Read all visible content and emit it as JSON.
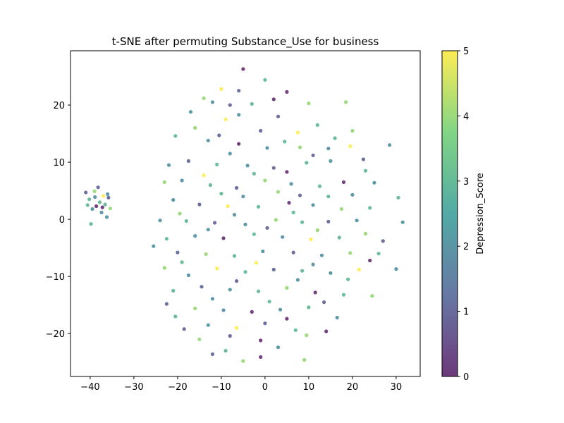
{
  "chart_data": {
    "type": "scatter",
    "title": "t-SNE after permuting Substance_Use for business",
    "xlabel": "",
    "ylabel": "",
    "xlim": [
      -44.5,
      35.5
    ],
    "ylim": [
      -27.5,
      29.5
    ],
    "xticks": [
      -40,
      -30,
      -20,
      -10,
      0,
      10,
      20,
      30
    ],
    "xtick_labels": [
      "−40",
      "−30",
      "−20",
      "−10",
      "0",
      "10",
      "20",
      "30"
    ],
    "yticks": [
      -20,
      -10,
      0,
      10,
      20
    ],
    "ytick_labels": [
      "−20",
      "−10",
      "0",
      "10",
      "20"
    ],
    "grid": false,
    "colormap": "viridis",
    "marker_alpha": 0.75,
    "colorbar": {
      "label": "Depression_Score",
      "range": [
        0,
        5
      ],
      "ticks": [
        0,
        1,
        2,
        3,
        4,
        5
      ],
      "tick_labels": [
        "0",
        "1",
        "2",
        "3",
        "4",
        "5"
      ]
    },
    "points": [
      [
        -41.0,
        4.7,
        1
      ],
      [
        -40.2,
        3.5,
        3
      ],
      [
        -39.5,
        1.8,
        2
      ],
      [
        -39.0,
        4.9,
        4
      ],
      [
        -38.6,
        2.3,
        0
      ],
      [
        -38.2,
        5.6,
        1
      ],
      [
        -37.8,
        3.0,
        3
      ],
      [
        -37.4,
        1.2,
        2
      ],
      [
        -37.0,
        4.1,
        5
      ],
      [
        -36.6,
        2.6,
        3
      ],
      [
        -36.2,
        0.4,
        2
      ],
      [
        -35.8,
        3.8,
        1
      ],
      [
        -35.4,
        1.9,
        4
      ],
      [
        -39.8,
        -0.8,
        3
      ],
      [
        -38.9,
        3.9,
        2
      ],
      [
        -37.2,
        2.1,
        0
      ],
      [
        -40.6,
        2.5,
        3
      ],
      [
        -36.0,
        4.4,
        2
      ],
      [
        -5.0,
        26.3,
        0
      ],
      [
        0.0,
        24.4,
        3
      ],
      [
        -10.0,
        22.8,
        5
      ],
      [
        -6.0,
        22.5,
        1
      ],
      [
        5.0,
        22.3,
        0
      ],
      [
        -14.0,
        21.2,
        4
      ],
      [
        -12.0,
        20.5,
        2
      ],
      [
        -8.0,
        20.0,
        1
      ],
      [
        -3.0,
        20.2,
        3
      ],
      [
        2.0,
        21.0,
        0
      ],
      [
        10.0,
        20.3,
        4
      ],
      [
        18.5,
        20.5,
        4
      ],
      [
        -17.0,
        18.8,
        2
      ],
      [
        -9.0,
        17.5,
        5
      ],
      [
        3.0,
        18.0,
        1
      ],
      [
        12.0,
        16.5,
        3
      ],
      [
        -20.5,
        14.6,
        3
      ],
      [
        -13.0,
        13.8,
        2
      ],
      [
        -6.0,
        13.2,
        0
      ],
      [
        0.5,
        12.5,
        2
      ],
      [
        8.0,
        12.6,
        4
      ],
      [
        16.0,
        14.2,
        3
      ],
      [
        20.0,
        15.5,
        4
      ],
      [
        -22.0,
        9.5,
        2
      ],
      [
        -17.5,
        10.2,
        1
      ],
      [
        -11.0,
        9.6,
        3
      ],
      [
        -4.0,
        9.4,
        2
      ],
      [
        2.0,
        9.0,
        1
      ],
      [
        9.5,
        9.9,
        3
      ],
      [
        15.0,
        10.2,
        2
      ],
      [
        22.5,
        10.5,
        1
      ],
      [
        28.5,
        13.0,
        2
      ],
      [
        -23.0,
        6.5,
        4
      ],
      [
        -19.0,
        6.8,
        2
      ],
      [
        -12.5,
        6.0,
        3
      ],
      [
        -6.5,
        5.5,
        1
      ],
      [
        0.0,
        6.8,
        4
      ],
      [
        6.0,
        6.2,
        2
      ],
      [
        12.5,
        5.8,
        3
      ],
      [
        18.0,
        6.5,
        0
      ],
      [
        25.0,
        6.4,
        2
      ],
      [
        30.5,
        3.8,
        3
      ],
      [
        -21.0,
        3.4,
        2
      ],
      [
        -15.0,
        2.6,
        1
      ],
      [
        -8.5,
        2.3,
        5
      ],
      [
        -1.5,
        2.2,
        3
      ],
      [
        5.5,
        2.9,
        0
      ],
      [
        11.0,
        2.5,
        2
      ],
      [
        17.5,
        1.8,
        4
      ],
      [
        24.0,
        2.0,
        3
      ],
      [
        -24.0,
        -0.2,
        2
      ],
      [
        -18.0,
        -0.3,
        3
      ],
      [
        -11.5,
        -0.6,
        1
      ],
      [
        -4.5,
        -0.9,
        2
      ],
      [
        2.5,
        -0.1,
        4
      ],
      [
        8.5,
        -0.5,
        3
      ],
      [
        14.5,
        -0.4,
        1
      ],
      [
        21.0,
        -0.2,
        2
      ],
      [
        31.5,
        -0.5,
        2
      ],
      [
        -22.5,
        -3.4,
        3
      ],
      [
        -16.0,
        -2.9,
        2
      ],
      [
        -9.5,
        -3.3,
        0
      ],
      [
        -2.5,
        -2.6,
        3
      ],
      [
        4.0,
        -3.1,
        2
      ],
      [
        10.5,
        -3.5,
        5
      ],
      [
        17.0,
        -3.2,
        3
      ],
      [
        23.0,
        -2.5,
        4
      ],
      [
        27.0,
        -3.8,
        1
      ],
      [
        -25.5,
        -4.7,
        2
      ],
      [
        -20.0,
        -5.8,
        1
      ],
      [
        -13.5,
        -6.1,
        4
      ],
      [
        -7.0,
        -6.4,
        3
      ],
      [
        -0.5,
        -5.6,
        2
      ],
      [
        6.5,
        -5.8,
        1
      ],
      [
        13.0,
        -6.3,
        2
      ],
      [
        19.5,
        -5.9,
        4
      ],
      [
        26.0,
        -6.0,
        3
      ],
      [
        -23.0,
        -8.5,
        4
      ],
      [
        -17.5,
        -9.8,
        2
      ],
      [
        -11.0,
        -8.6,
        5
      ],
      [
        -4.5,
        -9.2,
        3
      ],
      [
        2.0,
        -8.8,
        1
      ],
      [
        8.5,
        -9.0,
        3
      ],
      [
        15.0,
        -9.4,
        2
      ],
      [
        21.5,
        -8.8,
        5
      ],
      [
        30.0,
        -8.7,
        2
      ],
      [
        -21.0,
        -12.5,
        3
      ],
      [
        -14.5,
        -11.8,
        1
      ],
      [
        -8.0,
        -12.3,
        2
      ],
      [
        -1.5,
        -12.6,
        3
      ],
      [
        5.0,
        -12.0,
        4
      ],
      [
        11.5,
        -12.8,
        0
      ],
      [
        18.0,
        -13.2,
        3
      ],
      [
        24.5,
        -13.4,
        4
      ],
      [
        -22.5,
        -14.8,
        1
      ],
      [
        -16.0,
        -15.6,
        4
      ],
      [
        -9.5,
        -15.9,
        2
      ],
      [
        -3.0,
        -16.2,
        0
      ],
      [
        3.5,
        -15.8,
        2
      ],
      [
        10.0,
        -15.4,
        3
      ],
      [
        16.5,
        -17.2,
        2
      ],
      [
        -20.5,
        -17.0,
        3
      ],
      [
        -13.0,
        -18.5,
        2
      ],
      [
        -6.5,
        -19.0,
        5
      ],
      [
        0.0,
        -18.2,
        1
      ],
      [
        7.0,
        -19.4,
        3
      ],
      [
        14.0,
        -19.6,
        0
      ],
      [
        -15.0,
        -21.0,
        4
      ],
      [
        -8.0,
        -20.4,
        1
      ],
      [
        -1.0,
        -21.2,
        0
      ],
      [
        9.5,
        -20.3,
        4
      ],
      [
        3.0,
        -22.4,
        2
      ],
      [
        -12.0,
        -23.6,
        1
      ],
      [
        -5.0,
        -24.8,
        4
      ],
      [
        -1.0,
        -24.1,
        0
      ],
      [
        9.0,
        -24.6,
        4
      ],
      [
        -9.0,
        -23.0,
        3
      ],
      [
        -6.0,
        18.3,
        2
      ],
      [
        -1.0,
        15.5,
        1
      ],
      [
        7.5,
        15.2,
        5
      ],
      [
        14.5,
        12.4,
        2
      ],
      [
        -16.0,
        16.0,
        4
      ],
      [
        -10.5,
        14.7,
        1
      ],
      [
        4.5,
        13.6,
        3
      ],
      [
        19.5,
        12.8,
        5
      ],
      [
        -8.0,
        11.5,
        2
      ],
      [
        11.0,
        11.2,
        1
      ],
      [
        -2.5,
        8.0,
        3
      ],
      [
        5.0,
        8.3,
        0
      ],
      [
        23.0,
        8.5,
        3
      ],
      [
        -14.0,
        7.7,
        5
      ],
      [
        -5.0,
        4.0,
        2
      ],
      [
        8.0,
        4.2,
        1
      ],
      [
        14.5,
        4.0,
        3
      ],
      [
        -10.0,
        4.5,
        3
      ],
      [
        3.0,
        4.8,
        4
      ],
      [
        20.0,
        4.3,
        2
      ],
      [
        -19.5,
        1.0,
        4
      ],
      [
        -7.0,
        0.8,
        2
      ],
      [
        6.5,
        1.2,
        3
      ],
      [
        -13.0,
        -1.8,
        2
      ],
      [
        0.5,
        -1.5,
        1
      ],
      [
        12.0,
        -1.9,
        4
      ],
      [
        -19.0,
        -7.5,
        3
      ],
      [
        -2.0,
        -7.6,
        5
      ],
      [
        11.0,
        -7.9,
        2
      ],
      [
        24.0,
        -7.2,
        0
      ],
      [
        -6.5,
        -10.8,
        1
      ],
      [
        7.5,
        -10.6,
        2
      ],
      [
        19.0,
        -10.5,
        3
      ],
      [
        -12.0,
        -13.9,
        2
      ],
      [
        1.0,
        -14.4,
        3
      ],
      [
        13.5,
        -14.5,
        1
      ],
      [
        -18.5,
        -19.2,
        1
      ],
      [
        5.0,
        -17.4,
        0
      ]
    ]
  }
}
